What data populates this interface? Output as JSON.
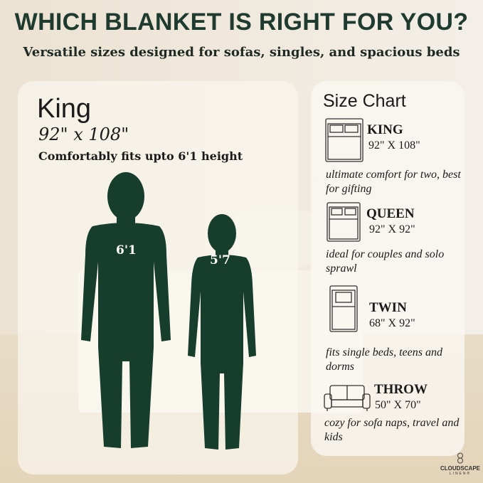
{
  "header": {
    "title": "WHICH BLANKET IS RIGHT FOR YOU?",
    "subtitle": "Versatile sizes designed for sofas, singles, and spacious beds"
  },
  "featured": {
    "name": "King",
    "dimensions": "92\" x 108\"",
    "fit": "Comfortably fits upto 6'1 height",
    "figures": [
      {
        "height": "6'1"
      },
      {
        "height": "5'7"
      }
    ],
    "figure_color": "#173d2c"
  },
  "size_chart": {
    "title": "Size Chart",
    "items": [
      {
        "name": "KING",
        "dimensions": "92\" X 108\"",
        "description": "ultimate comfort for two, best for gifting",
        "icon": "king-bed-icon"
      },
      {
        "name": "QUEEN",
        "dimensions": "92\" X 92\"",
        "description": "ideal for couples and solo sprawl",
        "icon": "queen-bed-icon"
      },
      {
        "name": "TWIN",
        "dimensions": "68\" X 92\"",
        "description": "fits single beds, teens and dorms",
        "icon": "twin-bed-icon"
      },
      {
        "name": "THROW",
        "dimensions": "50\" X 70\"",
        "description": "cozy for sofa naps, travel and kids",
        "icon": "sofa-icon"
      }
    ]
  },
  "brand": {
    "name": "CLOUDSCAPE",
    "sub": "LINEN®"
  }
}
